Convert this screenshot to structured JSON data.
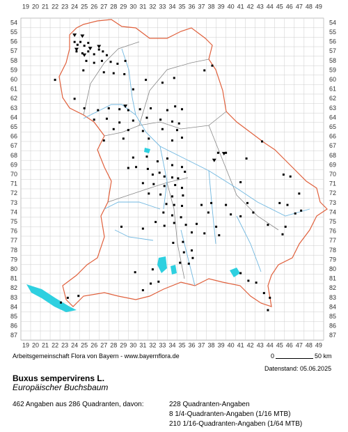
{
  "map": {
    "grid": {
      "columns": [
        19,
        20,
        21,
        22,
        23,
        24,
        25,
        26,
        27,
        28,
        29,
        30,
        31,
        32,
        33,
        34,
        35,
        36,
        37,
        38,
        39,
        40,
        41,
        42,
        43,
        44,
        45,
        46,
        47,
        48,
        49
      ],
      "rows": [
        54,
        55,
        56,
        57,
        58,
        59,
        60,
        61,
        62,
        63,
        64,
        65,
        66,
        67,
        68,
        69,
        70,
        71,
        72,
        73,
        74,
        75,
        76,
        77,
        78,
        79,
        80,
        81,
        82,
        83,
        84,
        85,
        86,
        87
      ]
    },
    "credit": "Arbeitsgemeinschaft Flora von Bayern - www.bayernflora.de",
    "scale": {
      "start": "0",
      "end": "50 km"
    },
    "date": "Datenstand: 05.06.2025",
    "species": "Buxus sempervirens L.",
    "common_name": "Europäischer Buchsbaum",
    "summary": "462 Angaben aus 286 Quadranten, davon:",
    "breakdown": [
      "228 Quadranten-Angaben",
      "8 1/4-Quadranten-Angaben (1/16 MTB)",
      "210 1/16-Quadranten-Angaben (1/64 MTB)"
    ]
  }
}
